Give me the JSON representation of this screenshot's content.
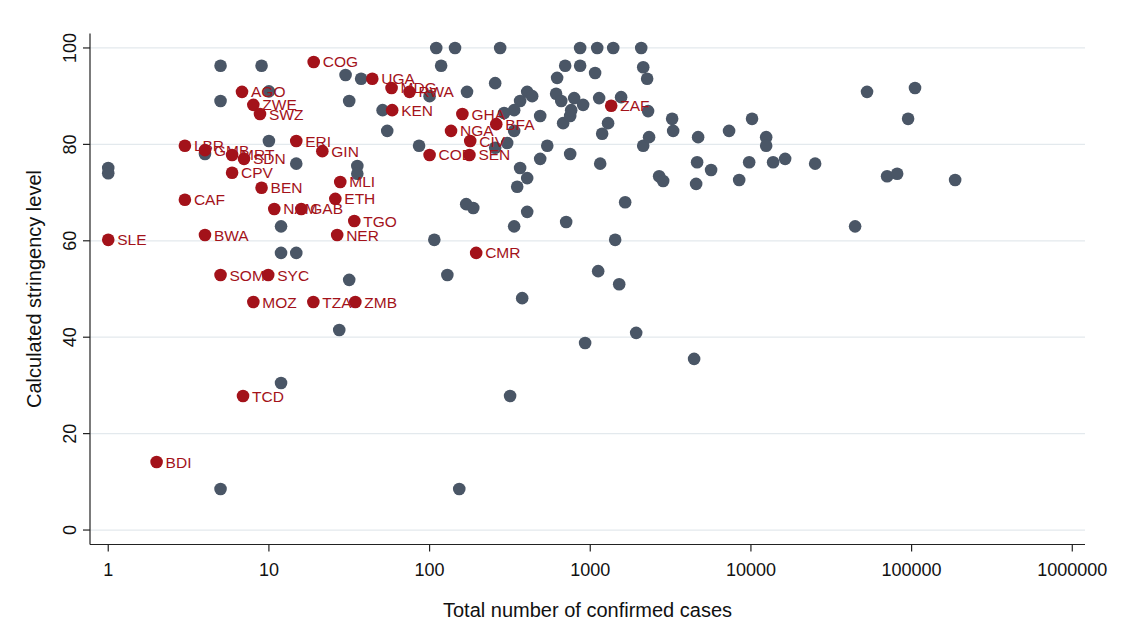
{
  "chart_data": {
    "type": "scatter",
    "x_label": "Total number of confirmed cases",
    "y_label": "Calculated stringency level",
    "log": "x",
    "grid": true,
    "xlim": [
      0.77,
      1200000
    ],
    "xticks": [
      1,
      10,
      100,
      1000,
      10000,
      100000,
      1000000
    ],
    "ylim": [
      -3,
      103
    ],
    "yticks": [
      0,
      20,
      40,
      60,
      80,
      100
    ],
    "series": [
      {
        "color": "#4a5666",
        "marker": "circle",
        "x": [
          1,
          1,
          5,
          5,
          9,
          10,
          10,
          4,
          14.8,
          14.8,
          11.9,
          11.9,
          11.9,
          5,
          30,
          31.6,
          37.5,
          35.5,
          35.5,
          31.6,
          27.4,
          51,
          54.5,
          110,
          144,
          275,
          100,
          118,
          171,
          256,
          86,
          107,
          129,
          169,
          187,
          366,
          405,
          336,
          291,
          435,
          336,
          304,
          256,
          366,
          405,
          351,
          336,
          405,
          377,
          317,
          153,
          488,
          540,
          488,
          613,
          622,
          698,
          660,
          678,
          750,
          761,
          708,
          750,
          865,
          1105,
          1390,
          2076,
          865,
          794,
          903,
          1072,
          1136,
          1291,
          1186,
          1153,
          1120,
          929,
          1429,
          1514,
          1649,
          1556,
          2136,
          2260,
          2136,
          2323,
          2291,
          1931,
          3233,
          3281,
          2684,
          2842,
          4692,
          5650,
          4625,
          4560,
          4430,
          7310,
          8450,
          9750,
          10160,
          12440,
          12440,
          13740,
          16330,
          25100,
          44500,
          52800,
          70400,
          81300,
          95100,
          105000,
          186600
        ],
        "values": [
          75.1,
          74,
          96.3,
          89,
          96.3,
          91,
          80.7,
          78,
          76,
          57.5,
          57.5,
          63,
          30.5,
          8.5,
          94.4,
          89,
          93.6,
          75.5,
          73.9,
          51.9,
          41.5,
          87.1,
          82.8,
          100,
          100,
          100,
          90,
          96.3,
          90.9,
          92.7,
          79.7,
          60.2,
          52.9,
          67.6,
          66.8,
          89,
          90.9,
          87.1,
          86.5,
          90,
          82.8,
          80.3,
          79.3,
          75.1,
          73,
          71.2,
          63,
          66,
          48.1,
          27.8,
          8.5,
          77,
          79.7,
          85.9,
          90.5,
          93.8,
          96.3,
          89,
          84.4,
          85.9,
          87.1,
          63.9,
          78,
          100,
          100,
          100,
          100,
          96.3,
          89.6,
          88.2,
          94.8,
          89.6,
          84.4,
          82.2,
          76,
          53.7,
          38.8,
          60.2,
          51,
          68,
          89.8,
          96,
          93.6,
          79.7,
          81.5,
          86.9,
          40.9,
          85.3,
          82.8,
          73.4,
          72.4,
          81.5,
          74.7,
          76.3,
          71.8,
          35.5,
          82.8,
          72.6,
          76.3,
          85.3,
          81.5,
          79.7,
          76.3,
          77,
          76,
          63,
          90.9,
          73.4,
          73.9,
          85.3,
          91.7,
          72.6
        ]
      },
      {
        "color": "#a3121a",
        "marker": "circle",
        "labels": [
          "COG",
          "UGA",
          "MDG",
          "RWA",
          "KEN",
          "AGO",
          "ZWE",
          "SWZ",
          "ERI",
          "GIN",
          "LBR",
          "GMB",
          "MRT",
          "SDN",
          "CPV",
          "BEN",
          "MLI",
          "CAF",
          "ETH",
          "NAM",
          "GAB",
          "TGO",
          "NER",
          "BWA",
          "SLE",
          "CMR",
          "SOM",
          "SYC",
          "MOZ",
          "TZA",
          "ZMB",
          "TCD",
          "BDI",
          "GHA",
          "NGA",
          "BFA",
          "CIV",
          "COD",
          "SEN",
          "ZAF"
        ],
        "x": [
          19,
          44,
          58,
          75,
          58.5,
          6.8,
          8,
          8.8,
          14.8,
          21.5,
          3,
          4,
          5.9,
          7,
          5.9,
          9,
          27.8,
          3,
          25.9,
          10.8,
          15.9,
          34,
          26.6,
          4,
          1,
          195,
          5,
          9.9,
          8,
          18.9,
          34.5,
          6.9,
          2,
          160,
          136,
          260,
          179,
          100,
          177,
          1350
        ],
        "values": [
          97.1,
          93.6,
          91.7,
          90.9,
          87.1,
          90.9,
          88.2,
          86.3,
          80.7,
          78.6,
          79.7,
          78.8,
          77.8,
          77,
          74.1,
          71,
          72.2,
          68.5,
          68.7,
          66.6,
          66.6,
          64.1,
          61.2,
          61.2,
          60.2,
          57.5,
          52.9,
          52.9,
          47.3,
          47.3,
          47.3,
          27.8,
          14.1,
          86.3,
          82.8,
          84.2,
          80.7,
          77.8,
          77.8,
          88
        ]
      }
    ]
  }
}
